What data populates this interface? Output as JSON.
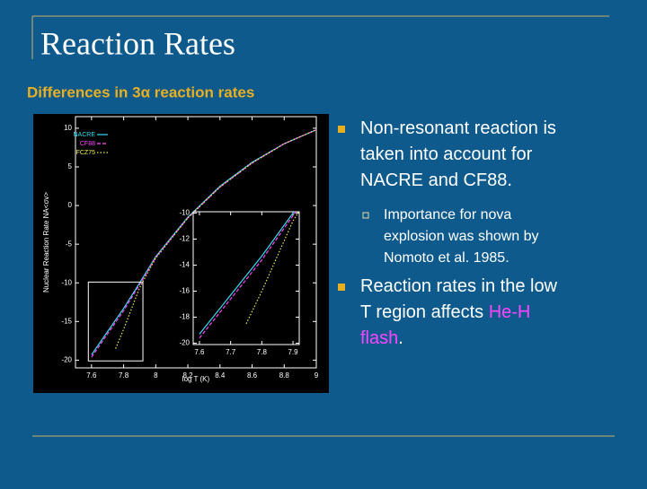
{
  "slide": {
    "title": "Reaction Rates",
    "subtitle": "Differences in 3α reaction rates",
    "bullets": [
      {
        "level": 1,
        "lines": [
          [
            {
              "text": "Non-resonant reaction is"
            }
          ],
          [
            {
              "text": "taken into account for"
            }
          ],
          [
            {
              "text": "NACRE and CF88."
            }
          ]
        ]
      },
      {
        "level": 2,
        "lines": [
          [
            {
              "text": "Importance for nova"
            }
          ],
          [
            {
              "text": "explosion was shown by"
            }
          ],
          [
            {
              "text": "Nomoto et al. 1985."
            }
          ]
        ]
      },
      {
        "level": 1,
        "lines": [
          [
            {
              "text": "Reaction rates in the low"
            }
          ],
          [
            {
              "text": "T region affects "
            },
            {
              "text": "He-H",
              "color": "#ff44ff"
            }
          ],
          [
            {
              "text": "flash",
              "color": "#ff44ff"
            },
            {
              "text": "."
            }
          ]
        ]
      }
    ]
  },
  "chart_data": {
    "type": "line",
    "x_label": "log T (K)",
    "y_label": "Nuclear Reaction Rate NA<σv>",
    "x": [
      7.6,
      7.7,
      7.75,
      7.8,
      7.9,
      8.0,
      8.2,
      8.4,
      8.6,
      8.8,
      9.0
    ],
    "series": [
      {
        "name": "NACRE",
        "color": "#33ddee",
        "style": "solid",
        "values": [
          -19.3,
          -16.3,
          -14.8,
          -13.3,
          -10,
          -6.6,
          -1.5,
          2.5,
          5.6,
          8,
          9.8
        ]
      },
      {
        "name": "CF88",
        "color": "#ff44ff",
        "style": "dashed",
        "values": [
          -19.6,
          -16.6,
          -15.1,
          -13.6,
          -10.2,
          -6.7,
          -1.6,
          2.4,
          5.5,
          8,
          9.8
        ]
      },
      {
        "name": "FCZ75",
        "color": "#eeee55",
        "style": "dotted",
        "values": [
          null,
          null,
          -18.5,
          -16,
          -10.6,
          -6.8,
          -1.6,
          2.4,
          5.5,
          8,
          9.8
        ]
      }
    ],
    "xlim": [
      7.5,
      9
    ],
    "ylim": [
      -21,
      11.5
    ],
    "xticks": [
      7.6,
      7.8,
      8,
      8.2,
      8.4,
      8.6,
      8.8,
      9
    ],
    "yticks": [
      -20,
      -15,
      -10,
      -5,
      0,
      5,
      10
    ],
    "inset": {
      "xlim": [
        7.58,
        7.92
      ],
      "ylim": [
        -20.1,
        -9.9
      ],
      "xticks": [
        7.6,
        7.7,
        7.8,
        7.9
      ],
      "yticks": [
        -20,
        -18,
        -16,
        -14,
        -12,
        -10
      ]
    }
  }
}
